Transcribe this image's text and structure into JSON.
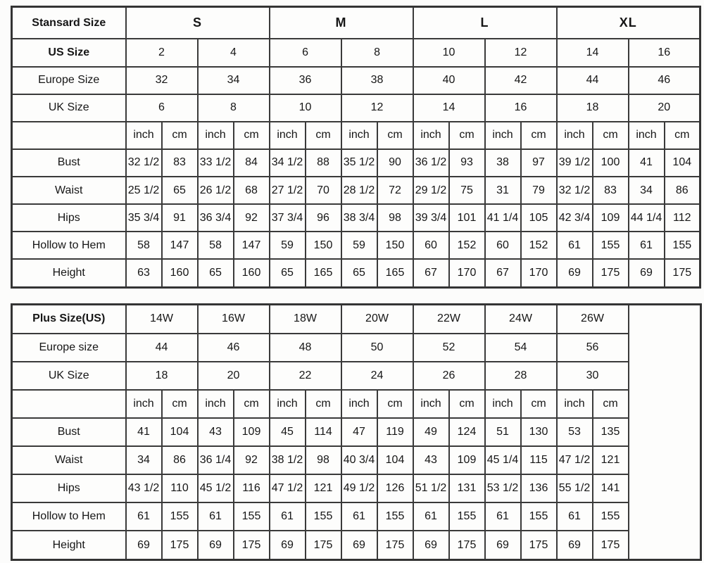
{
  "page": {
    "background_color": "#fcfcfb",
    "border_color": "#3a3a3a",
    "text_color": "#161616"
  },
  "chart_data": [
    {
      "type": "table",
      "name": "standard-size-table",
      "corner_label": "Stansard Size",
      "size_groups": [
        "S",
        "M",
        "L",
        "XL"
      ],
      "group_span": 4,
      "groups_bold": true,
      "size_rows": [
        {
          "label": "US Size",
          "bold": true,
          "values": [
            "2",
            "4",
            "6",
            "8",
            "10",
            "12",
            "14",
            "16"
          ]
        },
        {
          "label": "Europe Size",
          "bold": false,
          "values": [
            "32",
            "34",
            "36",
            "38",
            "40",
            "42",
            "44",
            "46"
          ]
        },
        {
          "label": "UK Size",
          "bold": false,
          "values": [
            "6",
            "8",
            "10",
            "12",
            "14",
            "16",
            "18",
            "20"
          ]
        }
      ],
      "unit_labels": [
        "inch",
        "cm"
      ],
      "measure_rows": [
        {
          "label": "Bust",
          "values": [
            "32 1/2",
            "83",
            "33 1/2",
            "84",
            "34 1/2",
            "88",
            "35 1/2",
            "90",
            "36 1/2",
            "93",
            "38",
            "97",
            "39 1/2",
            "100",
            "41",
            "104"
          ]
        },
        {
          "label": "Waist",
          "values": [
            "25 1/2",
            "65",
            "26 1/2",
            "68",
            "27 1/2",
            "70",
            "28 1/2",
            "72",
            "29 1/2",
            "75",
            "31",
            "79",
            "32 1/2",
            "83",
            "34",
            "86"
          ]
        },
        {
          "label": "Hips",
          "values": [
            "35 3/4",
            "91",
            "36 3/4",
            "92",
            "37 3/4",
            "96",
            "38 3/4",
            "98",
            "39 3/4",
            "101",
            "41 1/4",
            "105",
            "42 3/4",
            "109",
            "44 1/4",
            "112"
          ]
        },
        {
          "label": "Hollow to Hem",
          "values": [
            "58",
            "147",
            "58",
            "147",
            "59",
            "150",
            "59",
            "150",
            "60",
            "152",
            "60",
            "152",
            "61",
            "155",
            "61",
            "155"
          ]
        },
        {
          "label": "Height",
          "values": [
            "63",
            "160",
            "65",
            "160",
            "65",
            "165",
            "65",
            "165",
            "67",
            "170",
            "67",
            "170",
            "69",
            "175",
            "69",
            "175"
          ]
        }
      ],
      "trailing_empty_column": false
    },
    {
      "type": "table",
      "name": "plus-size-table",
      "corner_label": "Plus Size(US)",
      "size_groups": [
        "14W",
        "16W",
        "18W",
        "20W",
        "22W",
        "24W",
        "26W"
      ],
      "group_span": 2,
      "groups_bold": false,
      "size_rows": [
        {
          "label": "Europe size",
          "bold": false,
          "values": [
            "44",
            "46",
            "48",
            "50",
            "52",
            "54",
            "56"
          ]
        },
        {
          "label": "UK Size",
          "bold": false,
          "values": [
            "18",
            "20",
            "22",
            "24",
            "26",
            "28",
            "30"
          ]
        }
      ],
      "unit_labels": [
        "inch",
        "cm"
      ],
      "measure_rows": [
        {
          "label": "Bust",
          "values": [
            "41",
            "104",
            "43",
            "109",
            "45",
            "114",
            "47",
            "119",
            "49",
            "124",
            "51",
            "130",
            "53",
            "135"
          ]
        },
        {
          "label": "Waist",
          "values": [
            "34",
            "86",
            "36 1/4",
            "92",
            "38 1/2",
            "98",
            "40 3/4",
            "104",
            "43",
            "109",
            "45 1/4",
            "115",
            "47 1/2",
            "121"
          ]
        },
        {
          "label": "Hips",
          "values": [
            "43 1/2",
            "110",
            "45 1/2",
            "116",
            "47 1/2",
            "121",
            "49 1/2",
            "126",
            "51 1/2",
            "131",
            "53 1/2",
            "136",
            "55 1/2",
            "141"
          ]
        },
        {
          "label": "Hollow to Hem",
          "values": [
            "61",
            "155",
            "61",
            "155",
            "61",
            "155",
            "61",
            "155",
            "61",
            "155",
            "61",
            "155",
            "61",
            "155"
          ]
        },
        {
          "label": "Height",
          "values": [
            "69",
            "175",
            "69",
            "175",
            "69",
            "175",
            "69",
            "175",
            "69",
            "175",
            "69",
            "175",
            "69",
            "175"
          ]
        }
      ],
      "trailing_empty_column": true
    }
  ]
}
